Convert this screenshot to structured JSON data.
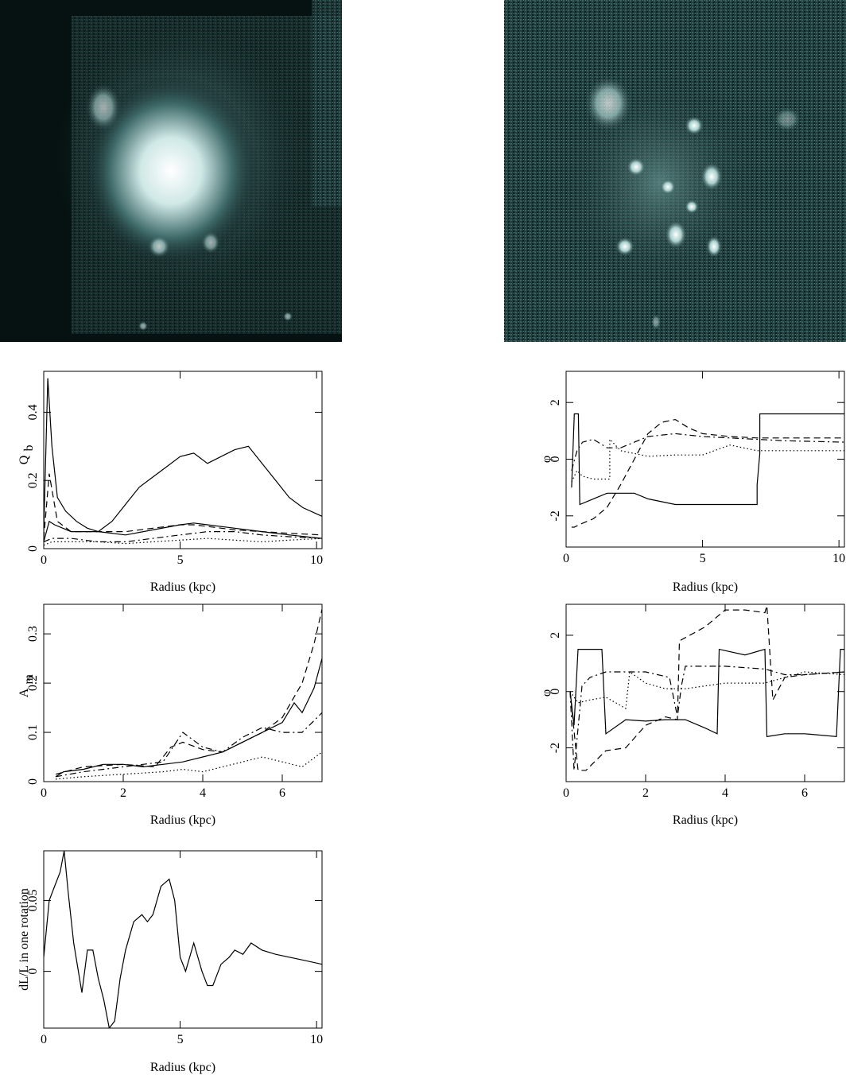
{
  "chart_data": [
    {
      "type": "line",
      "x_label": "Radius (kpc)",
      "y_label": "Q",
      "y_label_sub": "b",
      "xlim": [
        0,
        10.2
      ],
      "xticks": [
        0,
        5,
        10
      ],
      "ylim": [
        0,
        0.52
      ],
      "yticks": [
        0,
        0.2,
        0.4
      ],
      "series": [
        {
          "color": "#000000",
          "dash": "solid",
          "x": [
            0,
            0.15,
            0.3,
            0.5,
            0.8,
            1.2,
            1.6,
            2,
            2.5,
            3,
            3.5,
            4,
            4.5,
            5,
            5.5,
            6,
            6.5,
            7,
            7.5,
            8,
            8.5,
            9,
            9.5,
            10.2
          ],
          "values": [
            0.05,
            0.5,
            0.3,
            0.15,
            0.11,
            0.08,
            0.06,
            0.05,
            0.08,
            0.13,
            0.18,
            0.21,
            0.24,
            0.27,
            0.28,
            0.25,
            0.27,
            0.29,
            0.3,
            0.25,
            0.2,
            0.15,
            0.12,
            0.095
          ]
        },
        {
          "color": "#000000",
          "dash": "solid",
          "x": [
            0,
            0.2,
            0.4,
            1,
            2,
            3,
            4,
            5,
            5.5,
            6,
            7,
            8,
            9,
            10.2
          ],
          "values": [
            0.02,
            0.08,
            0.07,
            0.05,
            0.05,
            0.04,
            0.055,
            0.07,
            0.075,
            0.07,
            0.06,
            0.05,
            0.04,
            0.03
          ]
        },
        {
          "color": "#000000",
          "dash": "dashed",
          "x": [
            0,
            0.2,
            0.5,
            1,
            2,
            3,
            4,
            5,
            5.5,
            6,
            7,
            8,
            9,
            10.2
          ],
          "values": [
            0.03,
            0.22,
            0.08,
            0.05,
            0.05,
            0.05,
            0.06,
            0.07,
            0.07,
            0.065,
            0.055,
            0.05,
            0.045,
            0.04
          ]
        },
        {
          "color": "#000000",
          "dash": "dashdot",
          "x": [
            0,
            0.3,
            1,
            2,
            3,
            4,
            5,
            6,
            7,
            8,
            9,
            10.2
          ],
          "values": [
            0.02,
            0.03,
            0.03,
            0.02,
            0.02,
            0.03,
            0.04,
            0.05,
            0.05,
            0.04,
            0.035,
            0.03
          ]
        },
        {
          "color": "#000000",
          "dash": "dotted",
          "x": [
            0,
            0.3,
            1,
            2,
            3,
            4,
            5,
            6,
            7,
            8,
            9,
            10.2
          ],
          "values": [
            0.01,
            0.02,
            0.02,
            0.02,
            0.015,
            0.02,
            0.025,
            0.03,
            0.025,
            0.02,
            0.025,
            0.03
          ]
        }
      ]
    },
    {
      "type": "line",
      "x_label": "Radius (kpc)",
      "y_label": "φ",
      "xlim": [
        0,
        10.2
      ],
      "xticks": [
        0,
        5,
        10
      ],
      "ylim": [
        -3.1,
        3.1
      ],
      "yticks": [
        -2,
        0,
        2
      ],
      "series": [
        {
          "color": "#000000",
          "dash": "solid",
          "x": [
            0.2,
            0.3,
            0.45,
            0.5,
            1,
            1.5,
            2.5,
            3,
            4,
            5,
            6,
            7,
            7,
            7.1,
            7.1,
            10.2
          ],
          "values": [
            -1,
            1.6,
            1.6,
            -1.6,
            -1.4,
            -1.2,
            -1.2,
            -1.4,
            -1.6,
            -1.6,
            -1.6,
            -1.6,
            -0.9,
            0.2,
            1.6,
            1.6
          ]
        },
        {
          "color": "#000000",
          "dash": "dashed",
          "x": [
            0.2,
            0.3,
            0.5,
            1,
            1.5,
            2,
            2.5,
            3,
            3.5,
            4,
            4.5,
            5,
            6,
            7,
            8,
            9,
            10.2
          ],
          "values": [
            -2.4,
            -2.4,
            -2.3,
            -2.1,
            -1.7,
            -0.9,
            0,
            0.9,
            1.3,
            1.4,
            1.1,
            0.9,
            0.8,
            0.75,
            0.75,
            0.75,
            0.75
          ]
        },
        {
          "color": "#000000",
          "dash": "dashdot",
          "x": [
            0.2,
            0.4,
            0.6,
            1,
            1.5,
            2,
            2.5,
            3,
            4,
            5,
            6,
            7,
            8,
            10.2
          ],
          "values": [
            -0.4,
            0.3,
            0.6,
            0.7,
            0.4,
            0.4,
            0.6,
            0.8,
            0.9,
            0.8,
            0.75,
            0.7,
            0.65,
            0.6
          ]
        },
        {
          "color": "#000000",
          "dash": "dotted",
          "x": [
            0.2,
            0.4,
            0.6,
            1,
            1.5,
            1.6,
            1.6,
            2,
            3,
            4,
            5,
            6,
            7,
            8,
            10.2
          ],
          "values": [
            -0.8,
            -0.4,
            -0.6,
            -0.7,
            -0.7,
            -0.7,
            0.7,
            0.3,
            0.1,
            0.15,
            0.15,
            0.5,
            0.3,
            0.3,
            0.3
          ]
        }
      ]
    },
    {
      "type": "line",
      "x_label": "Radius (kpc)",
      "y_label": "A",
      "y_label_sub": "m",
      "xlim": [
        0,
        7
      ],
      "xticks": [
        0,
        2,
        4,
        6
      ],
      "ylim": [
        0,
        0.36
      ],
      "yticks": [
        0,
        0.1,
        0.2,
        0.3
      ],
      "series": [
        {
          "color": "#000000",
          "dash": "solid",
          "x": [
            0.3,
            0.5,
            1,
            1.5,
            2,
            2.5,
            3,
            3.5,
            4,
            4.5,
            5,
            5.5,
            6,
            6.3,
            6.5,
            6.8,
            7
          ],
          "values": [
            0.01,
            0.02,
            0.025,
            0.035,
            0.035,
            0.03,
            0.035,
            0.04,
            0.05,
            0.06,
            0.08,
            0.1,
            0.12,
            0.16,
            0.14,
            0.19,
            0.25
          ]
        },
        {
          "color": "#000000",
          "dash": "dashed",
          "x": [
            0.3,
            1,
            2,
            2.8,
            3.2,
            3.5,
            4,
            4.5,
            5,
            5.5,
            6,
            6.5,
            6.8,
            7
          ],
          "values": [
            0.015,
            0.03,
            0.035,
            0.03,
            0.07,
            0.08,
            0.065,
            0.06,
            0.08,
            0.1,
            0.13,
            0.2,
            0.28,
            0.35
          ]
        },
        {
          "color": "#000000",
          "dash": "dashdot",
          "x": [
            0.3,
            1,
            2,
            3,
            3.5,
            4,
            4.5,
            5,
            5.5,
            6,
            6.5,
            7
          ],
          "values": [
            0.01,
            0.02,
            0.03,
            0.04,
            0.1,
            0.07,
            0.06,
            0.09,
            0.11,
            0.1,
            0.1,
            0.14
          ]
        },
        {
          "color": "#000000",
          "dash": "dotted",
          "x": [
            0.3,
            1,
            2,
            3,
            3.5,
            4,
            4.5,
            5,
            5.5,
            6,
            6.5,
            7
          ],
          "values": [
            0.005,
            0.01,
            0.015,
            0.02,
            0.025,
            0.02,
            0.03,
            0.04,
            0.05,
            0.04,
            0.03,
            0.06
          ]
        }
      ]
    },
    {
      "type": "line",
      "x_label": "Radius (kpc)",
      "y_label": "φ",
      "xlim": [
        0,
        7
      ],
      "xticks": [
        0,
        2,
        4,
        6
      ],
      "ylim": [
        -3.2,
        3.1
      ],
      "yticks": [
        -2,
        0,
        2
      ],
      "series": [
        {
          "color": "#000000",
          "dash": "solid",
          "x": [
            0.1,
            0.2,
            0.3,
            0.9,
            1,
            1.5,
            2,
            2.5,
            3,
            3.5,
            3.8,
            3.85,
            4.5,
            5,
            5.05,
            5.5,
            6,
            6.8,
            6.9,
            7
          ],
          "values": [
            0,
            -1.2,
            1.5,
            1.5,
            -1.5,
            -1,
            -1.05,
            -1,
            -1,
            -1.3,
            -1.5,
            1.5,
            1.3,
            1.5,
            -1.6,
            -1.5,
            -1.5,
            -1.6,
            1.5,
            1.5
          ]
        },
        {
          "color": "#000000",
          "dash": "dashed",
          "x": [
            0.1,
            0.3,
            0.5,
            1,
            1.5,
            2,
            2.5,
            2.8,
            2.85,
            3.5,
            4,
            4.5,
            5,
            5.05,
            5.2,
            5.5,
            6,
            7
          ],
          "values": [
            0,
            -2.8,
            -2.8,
            -2.1,
            -2,
            -1.2,
            -0.9,
            -1,
            1.8,
            2.3,
            2.9,
            2.9,
            2.8,
            3.05,
            -0.3,
            0.5,
            0.6,
            0.7
          ]
        },
        {
          "color": "#000000",
          "dash": "dashdot",
          "x": [
            0.1,
            0.2,
            0.4,
            0.6,
            1,
            2,
            2.6,
            2.8,
            2.9,
            3,
            4,
            5,
            5.5,
            6,
            7
          ],
          "values": [
            0,
            -2.8,
            0.2,
            0.5,
            0.7,
            0.7,
            0.5,
            -0.9,
            0.2,
            0.9,
            0.9,
            0.8,
            0.6,
            0.6,
            0.7
          ]
        },
        {
          "color": "#000000",
          "dash": "dotted",
          "x": [
            0.1,
            0.3,
            0.6,
            1,
            1.5,
            1.6,
            2,
            2.5,
            3,
            4,
            5,
            6,
            7
          ],
          "values": [
            0,
            -0.4,
            -0.3,
            -0.2,
            -0.6,
            0.7,
            0.3,
            0.1,
            0.1,
            0.3,
            0.3,
            0.7,
            0.6
          ]
        }
      ]
    },
    {
      "type": "line",
      "x_label": "Radius (kpc)",
      "y_label": "dL/L in one rotation",
      "xlim": [
        0,
        10.2
      ],
      "xticks": [
        0,
        5,
        10
      ],
      "ylim": [
        -0.04,
        0.085
      ],
      "yticks": [
        0,
        0.05
      ],
      "series": [
        {
          "color": "#000000",
          "dash": "solid",
          "x": [
            0,
            0.2,
            0.4,
            0.6,
            0.75,
            0.9,
            1.1,
            1.4,
            1.6,
            1.8,
            2,
            2.2,
            2.4,
            2.6,
            2.8,
            3,
            3.3,
            3.6,
            3.8,
            4,
            4.3,
            4.6,
            4.8,
            5,
            5.2,
            5.5,
            5.8,
            6,
            6.2,
            6.5,
            6.8,
            7,
            7.3,
            7.6,
            8,
            8.5,
            9,
            9.5,
            10.2
          ],
          "values": [
            0.01,
            0.05,
            0.06,
            0.07,
            0.085,
            0.055,
            0.02,
            -0.015,
            0.015,
            0.015,
            -0.005,
            -0.02,
            -0.04,
            -0.035,
            -0.005,
            0.015,
            0.035,
            0.04,
            0.035,
            0.04,
            0.06,
            0.065,
            0.05,
            0.01,
            0,
            0.02,
            0,
            -0.01,
            -0.01,
            0.005,
            0.01,
            0.015,
            0.012,
            0.02,
            0.015,
            0.012,
            0.01,
            0.008,
            0.005
          ]
        }
      ]
    }
  ]
}
